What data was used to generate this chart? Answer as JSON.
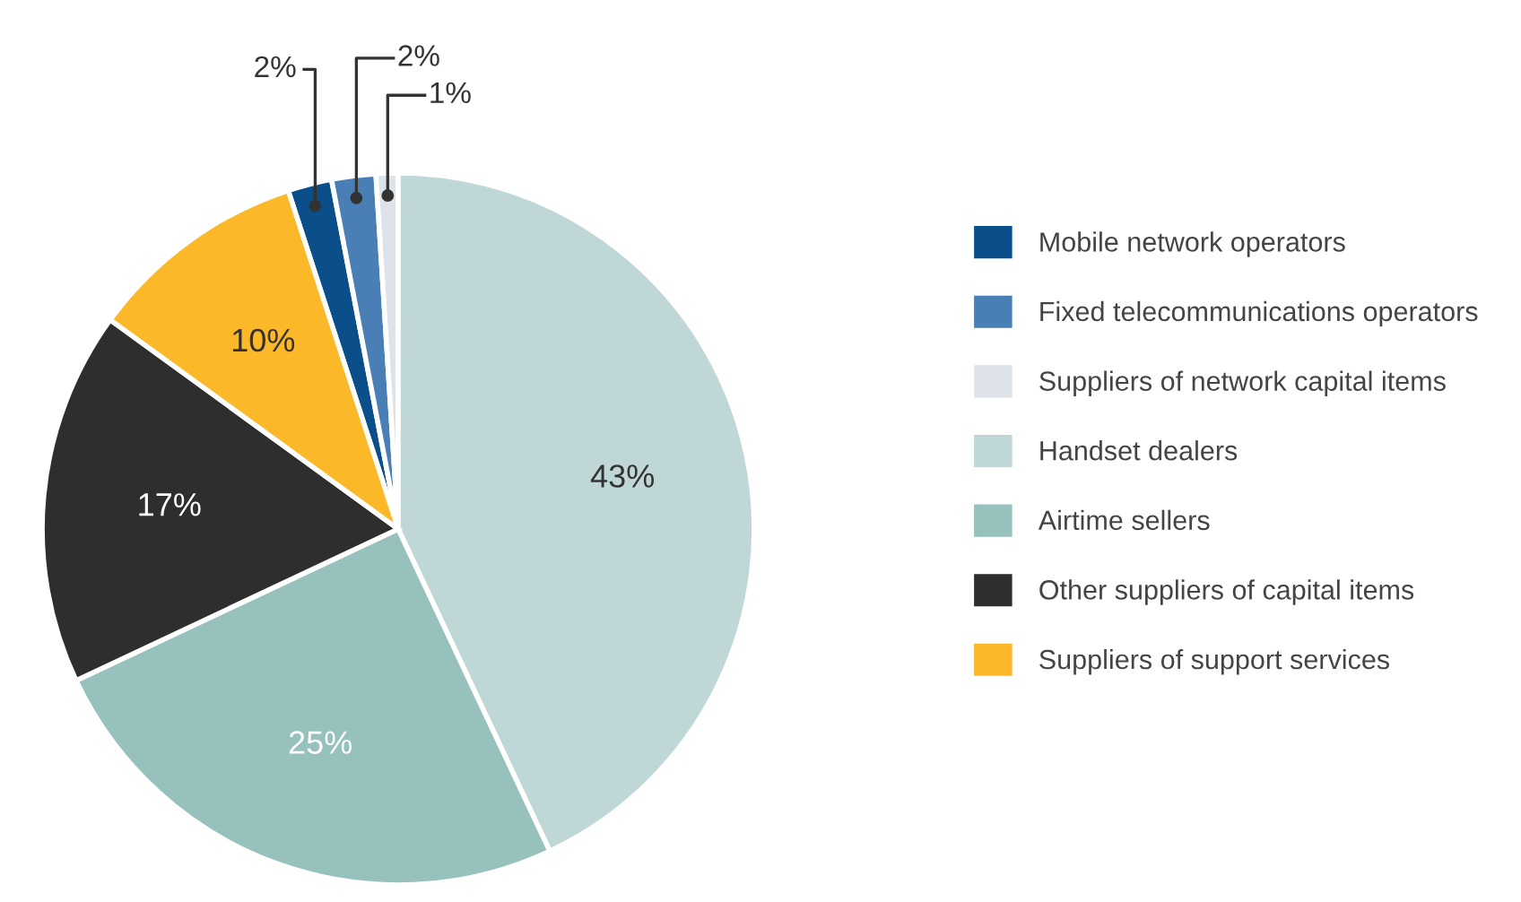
{
  "chart_data": {
    "type": "pie",
    "categories": [
      "Mobile network operators",
      "Fixed telecommunications operators",
      "Suppliers of network capital items",
      "Handset dealers",
      "Airtime sellers",
      "Other suppliers of capital items",
      "Suppliers of support services"
    ],
    "values": [
      2,
      2,
      1,
      43,
      25,
      17,
      10
    ],
    "colors": [
      "#0b4f8a",
      "#4a7fb5",
      "#dde3e8",
      "#bfd7d6",
      "#97c1bd",
      "#2e2e2e",
      "#fbb829"
    ],
    "value_labels": [
      "2%",
      "2%",
      "1%",
      "43%",
      "25%",
      "17%",
      "10%"
    ],
    "legend": "right"
  }
}
